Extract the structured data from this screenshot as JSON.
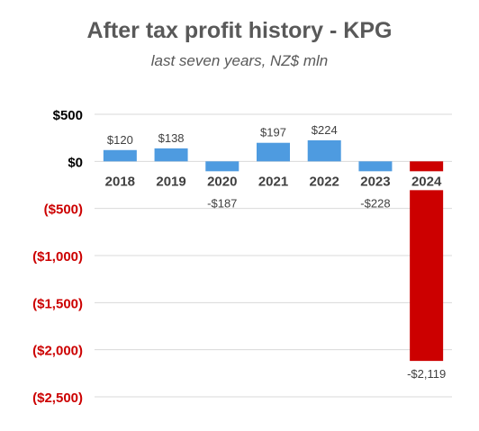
{
  "chart_data": {
    "type": "bar",
    "title": "After tax profit history - KPG",
    "subtitle": "last seven years, NZ$ mln",
    "xlabel": "",
    "ylabel": "",
    "categories": [
      "2018",
      "2019",
      "2020",
      "2021",
      "2022",
      "2023",
      "2024"
    ],
    "values": [
      120,
      138,
      -187,
      197,
      224,
      -228,
      -2119
    ],
    "data_labels": [
      "$120",
      "$138",
      "-$187",
      "$197",
      "$224",
      "-$228",
      "-$2,119"
    ],
    "bar_colors": [
      "#4e9be0",
      "#4e9be0",
      "#4e9be0",
      "#4e9be0",
      "#4e9be0",
      "#4e9be0",
      "#cc0000"
    ],
    "ylim": [
      -2500,
      500
    ],
    "yticks": [
      500,
      0,
      -500,
      -1000,
      -1500,
      -2000,
      -2500
    ],
    "ytick_labels": [
      "$500",
      "$0",
      "($500)",
      "($1,000)",
      "($1,500)",
      "($2,000)",
      "($2,500)"
    ],
    "ytick_colors": [
      "#000000",
      "#000000",
      "#cc0000",
      "#cc0000",
      "#cc0000",
      "#cc0000",
      "#cc0000"
    ],
    "grid": true,
    "legend": "none"
  }
}
